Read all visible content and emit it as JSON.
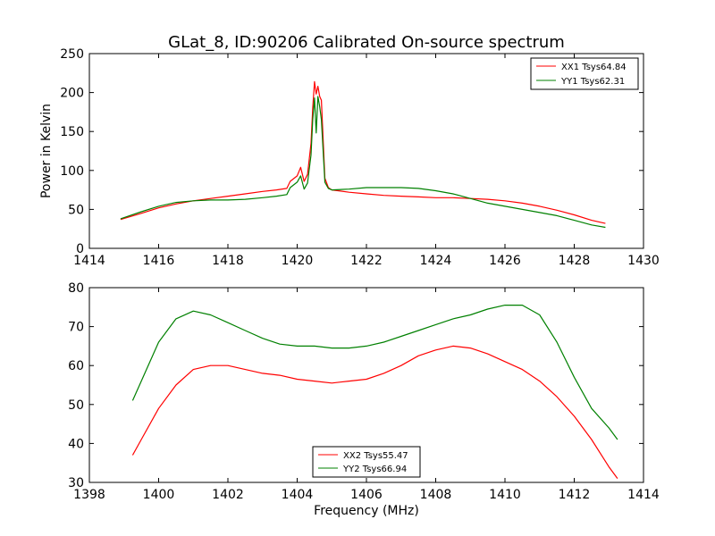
{
  "chart_data": [
    {
      "type": "line",
      "title": "GLat_8, ID:90206 Calibrated On-source spectrum",
      "xlabel": "",
      "ylabel": "Power in Kelvin",
      "xlim": [
        1414,
        1430
      ],
      "ylim": [
        0,
        250
      ],
      "xticks": [
        "1414",
        "1416",
        "1418",
        "1420",
        "1422",
        "1424",
        "1426",
        "1428",
        "1430"
      ],
      "yticks": [
        "0",
        "50",
        "100",
        "150",
        "200",
        "250"
      ],
      "legend_position": "top-right",
      "grid": false,
      "series": [
        {
          "name": "XX1 Tsys64.84",
          "color": "#ff0000",
          "x": [
            1414.9,
            1415.5,
            1416.0,
            1416.5,
            1417.0,
            1417.5,
            1418.0,
            1418.5,
            1419.0,
            1419.4,
            1419.7,
            1419.8,
            1420.0,
            1420.1,
            1420.2,
            1420.3,
            1420.4,
            1420.45,
            1420.5,
            1420.55,
            1420.6,
            1420.65,
            1420.7,
            1420.8,
            1420.9,
            1421.0,
            1421.5,
            1422.0,
            1422.5,
            1423.0,
            1423.5,
            1424.0,
            1424.5,
            1425.0,
            1425.5,
            1426.0,
            1426.5,
            1427.0,
            1427.5,
            1428.0,
            1428.5,
            1428.9
          ],
          "y": [
            37,
            45,
            52,
            57,
            61,
            64,
            67,
            70,
            73,
            75,
            77,
            86,
            93,
            104,
            86,
            95,
            135,
            180,
            214,
            198,
            208,
            195,
            190,
            90,
            78,
            75,
            72,
            70,
            68,
            67,
            66,
            65,
            65,
            64,
            63,
            61,
            58,
            54,
            49,
            43,
            36,
            32
          ]
        },
        {
          "name": "YY1 Tsys62.31",
          "color": "#008000",
          "x": [
            1414.9,
            1415.5,
            1416.0,
            1416.5,
            1417.0,
            1417.5,
            1418.0,
            1418.5,
            1419.0,
            1419.4,
            1419.7,
            1419.8,
            1420.0,
            1420.1,
            1420.2,
            1420.3,
            1420.4,
            1420.45,
            1420.5,
            1420.55,
            1420.6,
            1420.65,
            1420.7,
            1420.8,
            1420.9,
            1421.0,
            1421.5,
            1422.0,
            1422.5,
            1423.0,
            1423.5,
            1424.0,
            1424.5,
            1425.0,
            1425.5,
            1426.0,
            1426.5,
            1427.0,
            1427.5,
            1428.0,
            1428.5,
            1428.9
          ],
          "y": [
            38,
            47,
            54,
            59,
            61,
            62,
            62,
            63,
            65,
            67,
            69,
            78,
            85,
            93,
            76,
            84,
            120,
            165,
            193,
            148,
            195,
            182,
            165,
            85,
            77,
            75,
            76,
            78,
            78,
            78,
            77,
            74,
            70,
            64,
            58,
            54,
            50,
            46,
            42,
            36,
            30,
            27
          ]
        }
      ]
    },
    {
      "type": "line",
      "title": "",
      "xlabel": "Frequency (MHz)",
      "ylabel": "",
      "xlim": [
        1398,
        1414
      ],
      "ylim": [
        30,
        80
      ],
      "xticks": [
        "1398",
        "1400",
        "1402",
        "1404",
        "1406",
        "1408",
        "1410",
        "1412",
        "1414"
      ],
      "yticks": [
        "30",
        "40",
        "50",
        "60",
        "70",
        "80"
      ],
      "legend_position": "lower-center",
      "grid": false,
      "series": [
        {
          "name": "XX2 Tsys55.47",
          "color": "#ff0000",
          "x": [
            1399.25,
            1399.5,
            1400.0,
            1400.5,
            1401.0,
            1401.5,
            1402.0,
            1402.5,
            1403.0,
            1403.5,
            1404.0,
            1404.5,
            1405.0,
            1405.5,
            1406.0,
            1406.5,
            1407.0,
            1407.5,
            1408.0,
            1408.5,
            1409.0,
            1409.5,
            1410.0,
            1410.5,
            1411.0,
            1411.5,
            1412.0,
            1412.5,
            1413.0,
            1413.25
          ],
          "y": [
            37,
            41,
            49,
            55,
            59,
            60,
            60,
            59,
            58,
            57.5,
            56.5,
            56,
            55.5,
            56,
            56.5,
            58,
            60,
            62.5,
            64,
            65,
            64.5,
            63,
            61,
            59,
            56,
            52,
            47,
            41,
            34,
            31
          ]
        },
        {
          "name": "YY2 Tsys66.94",
          "color": "#008000",
          "x": [
            1399.25,
            1399.5,
            1400.0,
            1400.5,
            1401.0,
            1401.5,
            1402.0,
            1402.5,
            1403.0,
            1403.5,
            1404.0,
            1404.5,
            1405.0,
            1405.5,
            1406.0,
            1406.5,
            1407.0,
            1407.5,
            1408.0,
            1408.5,
            1409.0,
            1409.5,
            1410.0,
            1410.5,
            1411.0,
            1411.5,
            1412.0,
            1412.5,
            1413.0,
            1413.25
          ],
          "y": [
            51,
            56,
            66,
            72,
            74,
            73,
            71,
            69,
            67,
            65.5,
            65,
            65,
            64.5,
            64.5,
            65,
            66,
            67.5,
            69,
            70.5,
            72,
            73,
            74.5,
            75.5,
            75.5,
            73,
            66,
            57,
            49,
            44,
            41
          ]
        }
      ]
    }
  ]
}
